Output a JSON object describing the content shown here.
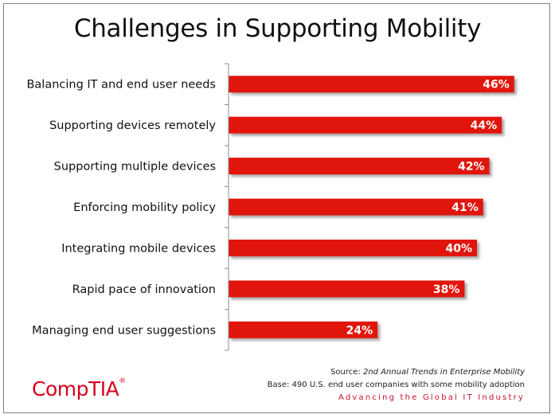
{
  "chart_data": {
    "type": "bar",
    "orientation": "horizontal",
    "title": "Challenges in Supporting Mobility",
    "categories": [
      "Balancing IT and end user needs",
      "Supporting devices remotely",
      "Supporting multiple devices",
      "Enforcing mobility policy",
      "Integrating mobile devices",
      "Rapid pace of innovation",
      "Managing end user suggestions"
    ],
    "values": [
      46,
      44,
      42,
      41,
      40,
      38,
      24
    ],
    "value_labels": [
      "46%",
      "44%",
      "42%",
      "41%",
      "40%",
      "38%",
      "24%"
    ],
    "xlim": [
      0,
      50
    ],
    "grid": false,
    "bar_color": "#e0120f"
  },
  "footer": {
    "source_prefix": "Source:",
    "source_title": "2nd Annual Trends in Enterprise Mobility",
    "base": "Base: 490 U.S. end user companies with some mobility adoption",
    "tagline": "Advancing the Global IT Industry"
  },
  "logo": {
    "text": "CompTIA",
    "mark": "®"
  },
  "colors": {
    "brand_red": "#d6001c",
    "bar_red": "#e0120f"
  }
}
